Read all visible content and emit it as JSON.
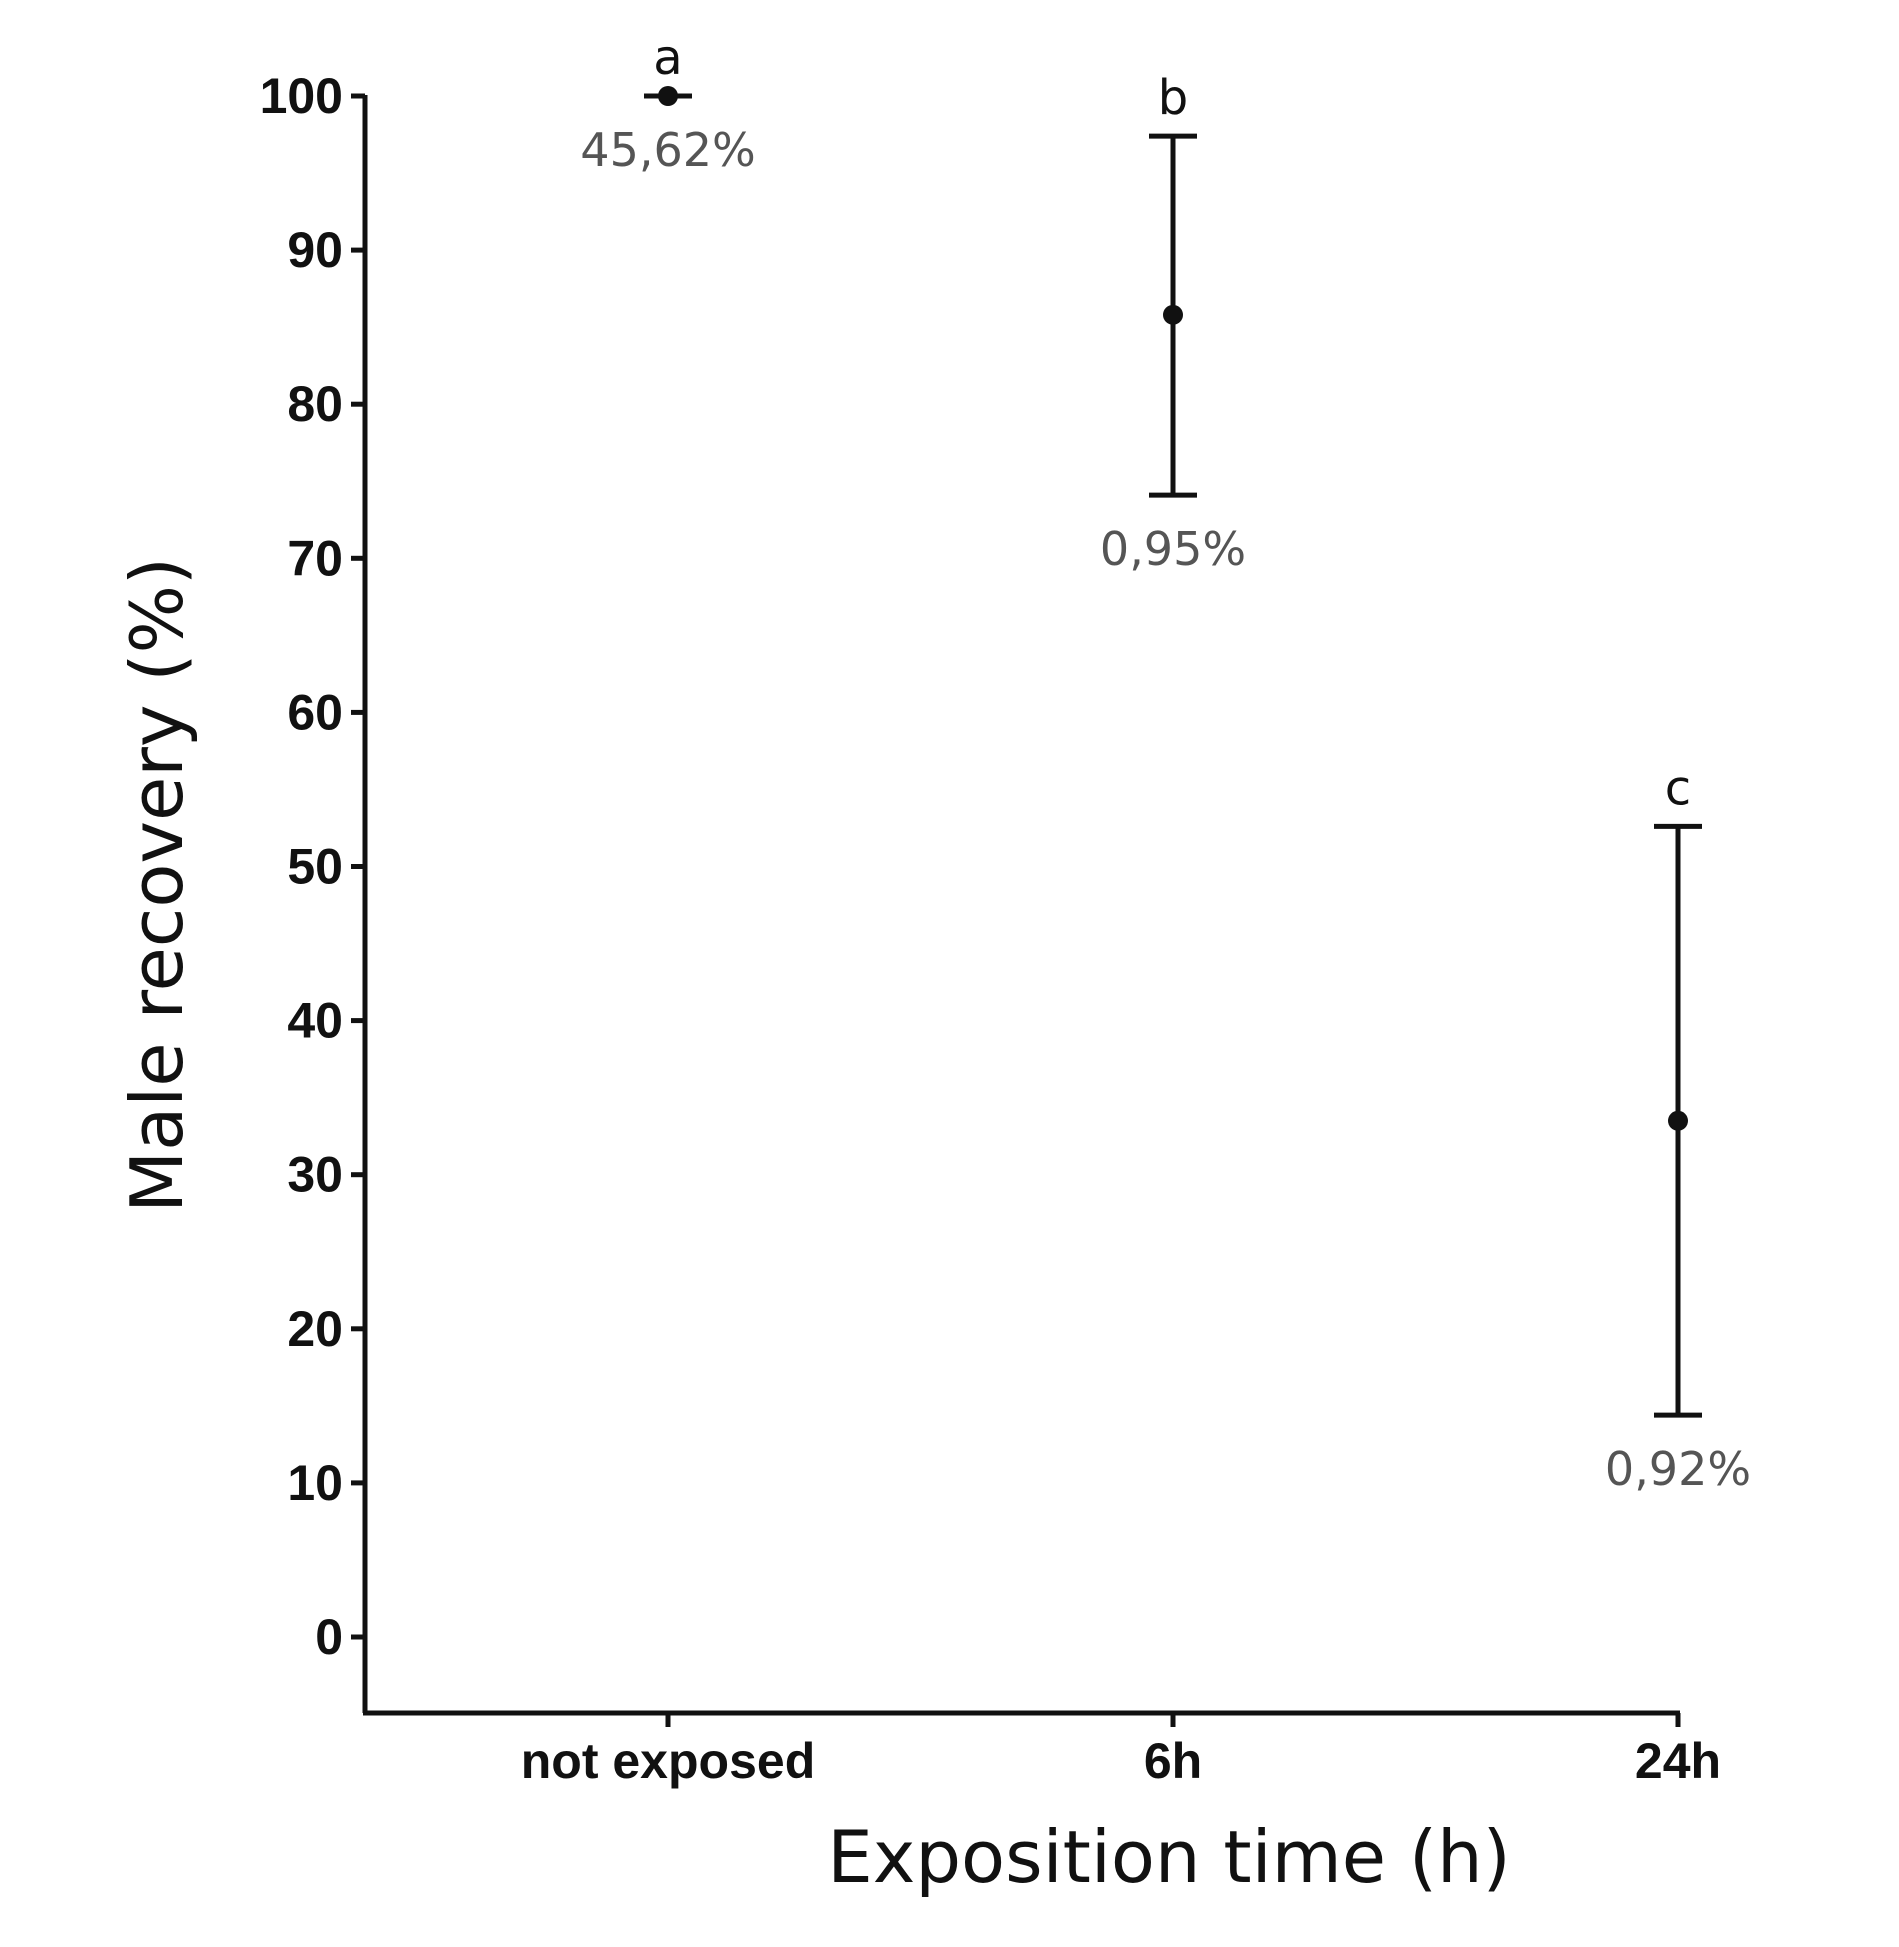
{
  "chart_data": {
    "type": "scatter",
    "title": "",
    "xlabel": "Exposition time (h)",
    "ylabel": "Male recovery (%)",
    "categories": [
      "not exposed",
      "6h",
      "24h"
    ],
    "ylim": [
      -5,
      100
    ],
    "yticks": [
      0,
      10,
      20,
      30,
      40,
      50,
      60,
      70,
      80,
      90,
      100
    ],
    "grid": false,
    "legend": "none",
    "points": [
      {
        "category": "not exposed",
        "mean": 100,
        "lower": 100,
        "upper": 100,
        "letter": "a",
        "percent_label": "45,62%"
      },
      {
        "category": "6h",
        "mean": 85.8,
        "lower": 74.1,
        "upper": 97.4,
        "letter": "b",
        "percent_label": "0,95%"
      },
      {
        "category": "24h",
        "mean": 33.5,
        "lower": 14.4,
        "upper": 52.6,
        "letter": "c",
        "percent_label": "0,92%"
      }
    ],
    "colors": {
      "marks": "#111111",
      "annotation": "#555555"
    }
  }
}
